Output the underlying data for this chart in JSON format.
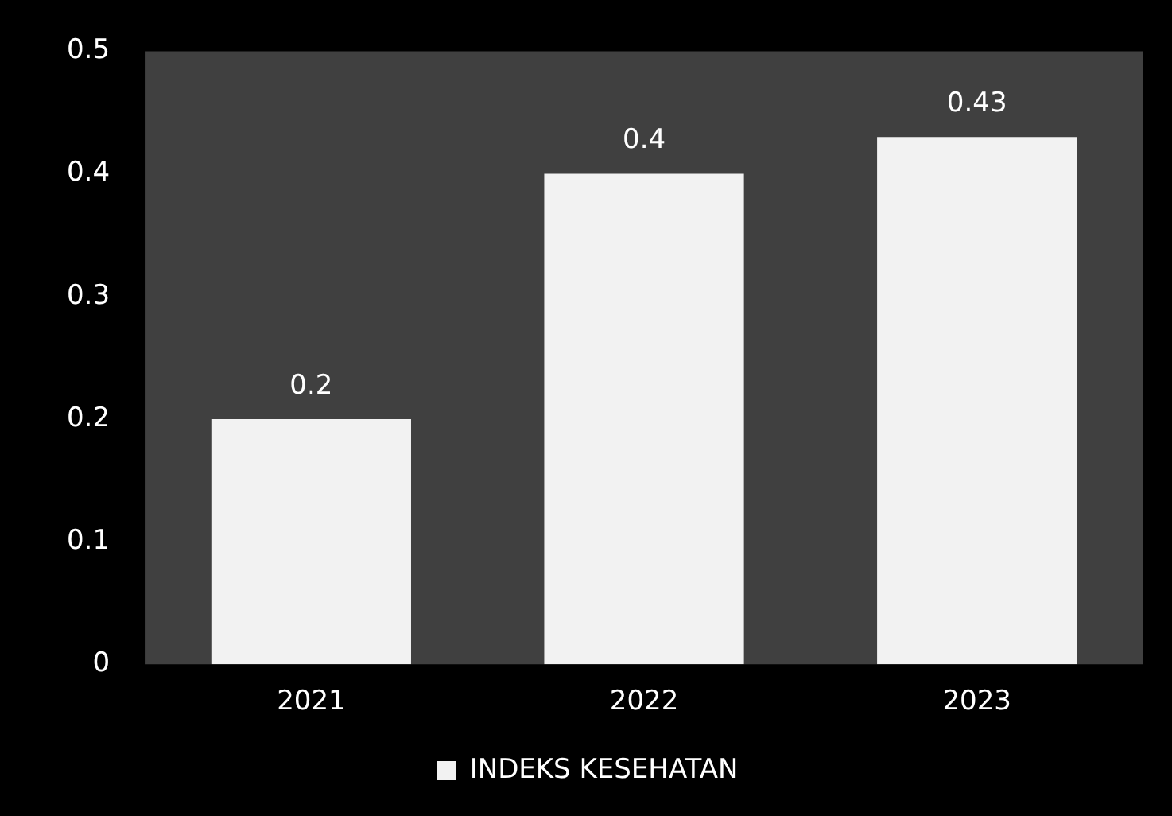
{
  "chart_data": {
    "type": "bar",
    "categories": [
      "2021",
      "2022",
      "2023"
    ],
    "series": [
      {
        "name": "INDEKS KESEHATAN",
        "color": "#f2f2f2",
        "values": [
          0.2,
          0.4,
          0.43
        ]
      }
    ],
    "ylim": [
      0,
      0.5
    ],
    "yticks": [
      0,
      0.1,
      0.2,
      0.3,
      0.4,
      0.5
    ],
    "data_labels": true,
    "grid": false,
    "legend": "bottom"
  }
}
